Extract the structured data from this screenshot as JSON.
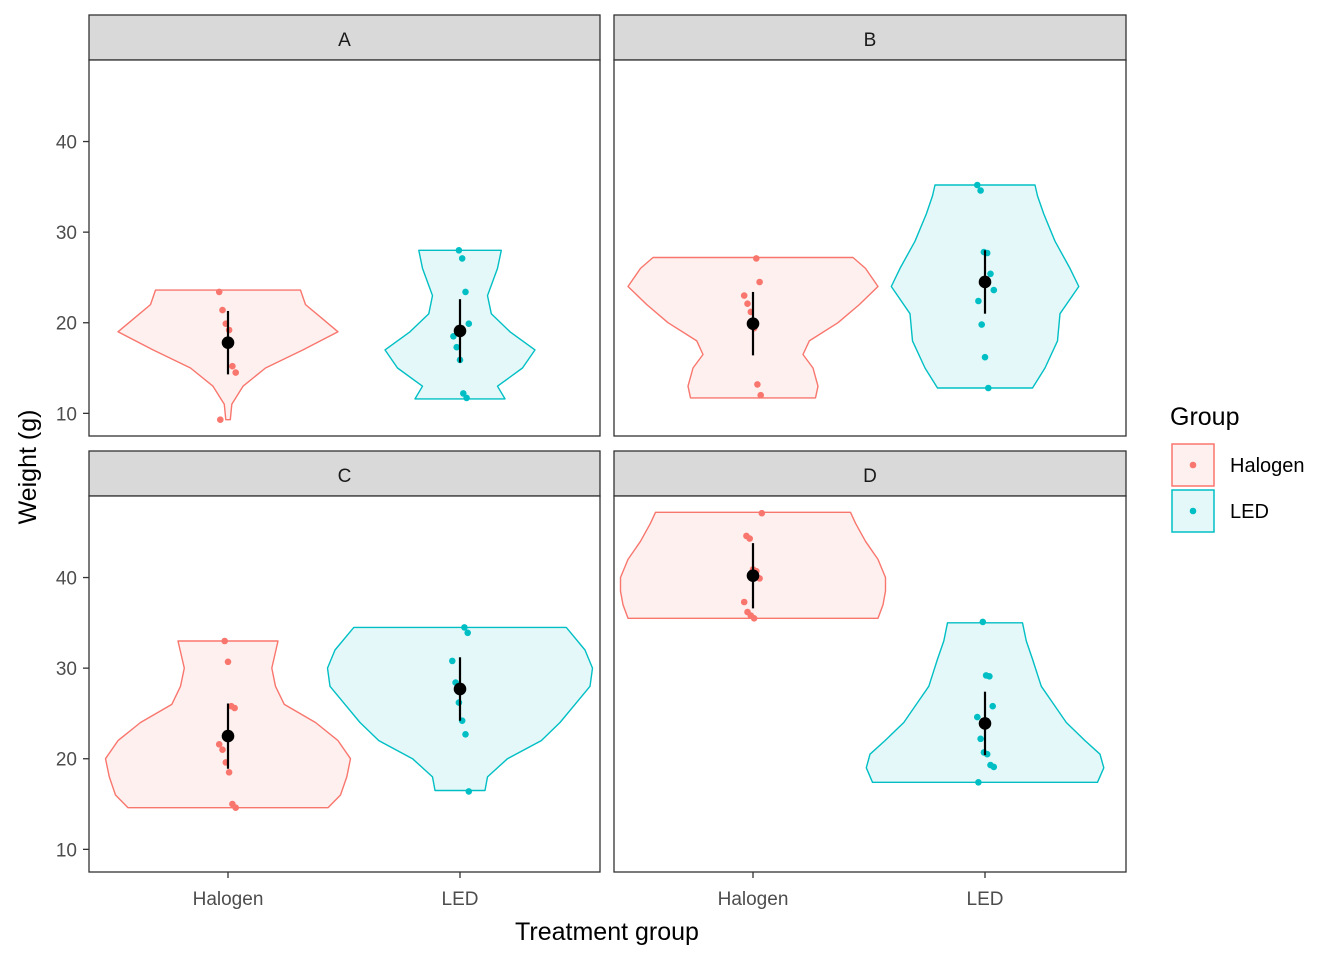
{
  "chart_data": {
    "type": "violin",
    "xlabel": "Treatment group",
    "ylabel": "Weight (g)",
    "categories": [
      "Halogen",
      "LED"
    ],
    "yticks": [
      10,
      20,
      30,
      40
    ],
    "ylim": [
      7.5,
      49
    ],
    "grid": false,
    "legend": {
      "title": "Group",
      "position": "right",
      "entries": [
        {
          "name": "Halogen",
          "color": "#F8766D"
        },
        {
          "name": "LED",
          "color": "#00BFC4"
        }
      ]
    },
    "summary_color": "#000000",
    "panels": [
      {
        "label": "A",
        "groups": [
          {
            "name": "Halogen",
            "color": "#F8766D",
            "mean": 17.8,
            "err_low": 14.3,
            "err_high": 21.3,
            "points": [
              23.4,
              21.4,
              19.9,
              19.2,
              15.2,
              14.5,
              9.3
            ],
            "violin": [
              [
                9.3,
                1.8
              ],
              [
                11,
                3
              ],
              [
                13,
                12
              ],
              [
                15,
                30
              ],
              [
                17,
                60
              ],
              [
                19,
                88
              ],
              [
                20.5,
                75
              ],
              [
                22,
                62
              ],
              [
                23.6,
                58
              ]
            ]
          },
          {
            "name": "LED",
            "color": "#00BFC4",
            "mean": 19.1,
            "err_low": 15.6,
            "err_high": 22.6,
            "points": [
              28.0,
              27.1,
              23.4,
              19.9,
              18.5,
              17.3,
              15.9,
              12.2,
              11.7
            ],
            "violin": [
              [
                11.6,
                36
              ],
              [
                13,
                30
              ],
              [
                15,
                50
              ],
              [
                17,
                60
              ],
              [
                19,
                40
              ],
              [
                21,
                25
              ],
              [
                23,
                22
              ],
              [
                24.5,
                26
              ],
              [
                26,
                30
              ],
              [
                28,
                33
              ]
            ]
          }
        ]
      },
      {
        "label": "B",
        "groups": [
          {
            "name": "Halogen",
            "color": "#F8766D",
            "mean": 19.9,
            "err_low": 16.4,
            "err_high": 23.4,
            "points": [
              27.1,
              24.5,
              23.0,
              22.1,
              21.2,
              19.4,
              13.2,
              12.0
            ],
            "violin": [
              [
                11.7,
                50
              ],
              [
                13,
                52
              ],
              [
                15,
                48
              ],
              [
                16.5,
                40
              ],
              [
                18,
                45
              ],
              [
                20,
                68
              ],
              [
                22,
                85
              ],
              [
                24,
                100
              ],
              [
                26,
                90
              ],
              [
                27.2,
                80
              ]
            ]
          },
          {
            "name": "LED",
            "color": "#00BFC4",
            "mean": 24.5,
            "err_low": 21.0,
            "err_high": 28.0,
            "points": [
              35.2,
              34.6,
              27.8,
              27.7,
              25.4,
              23.6,
              22.4,
              19.8,
              16.2,
              12.8
            ],
            "violin": [
              [
                12.8,
                38
              ],
              [
                15,
                48
              ],
              [
                18,
                58
              ],
              [
                21,
                60
              ],
              [
                24,
                75
              ],
              [
                26,
                68
              ],
              [
                29,
                56
              ],
              [
                32,
                47
              ],
              [
                34,
                42
              ],
              [
                35.2,
                40
              ]
            ]
          }
        ]
      },
      {
        "label": "C",
        "groups": [
          {
            "name": "Halogen",
            "color": "#F8766D",
            "mean": 22.5,
            "err_low": 18.9,
            "err_high": 26.1,
            "points": [
              33.0,
              30.7,
              25.8,
              25.6,
              21.6,
              21.0,
              19.6,
              18.5,
              15.0,
              14.6
            ],
            "violin": [
              [
                14.6,
                80
              ],
              [
                16,
                90
              ],
              [
                18,
                95
              ],
              [
                20,
                98
              ],
              [
                22,
                88
              ],
              [
                24,
                70
              ],
              [
                26,
                45
              ],
              [
                28,
                38
              ],
              [
                30,
                35
              ],
              [
                33,
                40
              ]
            ]
          },
          {
            "name": "LED",
            "color": "#00BFC4",
            "mean": 27.7,
            "err_low": 24.2,
            "err_high": 31.2,
            "points": [
              34.5,
              33.9,
              30.8,
              28.4,
              26.2,
              24.2,
              22.7,
              16.4
            ],
            "violin": [
              [
                16.5,
                20
              ],
              [
                18,
                22
              ],
              [
                20,
                38
              ],
              [
                22,
                65
              ],
              [
                24,
                80
              ],
              [
                26,
                92
              ],
              [
                28,
                104
              ],
              [
                30,
                106
              ],
              [
                32,
                100
              ],
              [
                34.5,
                85
              ]
            ]
          }
        ]
      },
      {
        "label": "D",
        "groups": [
          {
            "name": "Halogen",
            "color": "#F8766D",
            "mean": 40.2,
            "err_low": 36.6,
            "err_high": 43.8,
            "points": [
              47.1,
              44.6,
              44.3,
              40.9,
              40.7,
              39.9,
              37.3,
              36.2,
              35.8,
              35.5
            ],
            "violin": [
              [
                35.5,
                100
              ],
              [
                37,
                104
              ],
              [
                38.5,
                106
              ],
              [
                40,
                106
              ],
              [
                42,
                100
              ],
              [
                44,
                90
              ],
              [
                46,
                82
              ],
              [
                47.2,
                78
              ]
            ]
          },
          {
            "name": "LED",
            "color": "#00BFC4",
            "mean": 23.9,
            "err_low": 20.4,
            "err_high": 27.4,
            "points": [
              35.1,
              29.2,
              29.1,
              25.8,
              24.6,
              22.2,
              20.7,
              20.5,
              19.3,
              19.1,
              17.4
            ],
            "violin": [
              [
                17.4,
                90
              ],
              [
                19,
                95
              ],
              [
                20.5,
                92
              ],
              [
                22,
                80
              ],
              [
                24,
                65
              ],
              [
                26,
                55
              ],
              [
                28,
                45
              ],
              [
                31,
                38
              ],
              [
                33,
                33
              ],
              [
                35,
                30
              ]
            ]
          }
        ]
      }
    ]
  }
}
